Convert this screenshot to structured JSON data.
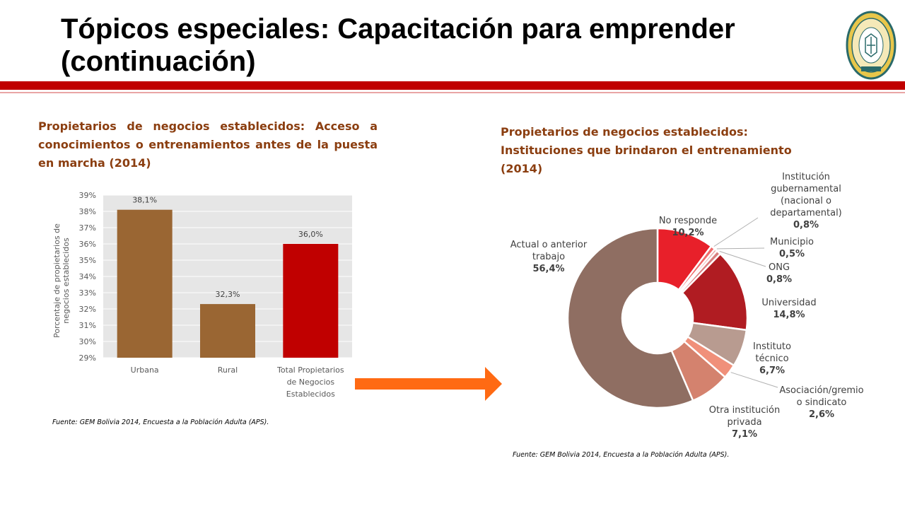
{
  "slide": {
    "title": "Tópicos especiales: Capacitación para emprender (continuación)"
  },
  "logo": {
    "icon": "university-seal-icon",
    "ring_text": "UNIVERSIDAD CATÓLICA BOLIVIANA SAN PABLO",
    "motto": "VERITAS IN CARITATE",
    "year": "MCMLXVI"
  },
  "colors": {
    "accent": "#c00000",
    "title_text": "#8b3e10"
  },
  "chart_data": [
    {
      "type": "bar",
      "title": "Propietarios de negocios establecidos: Acceso a conocimientos o entrenamientos antes de la puesta en marcha (2014)",
      "ylabel": "Porcentaje de propietarios de negocios establecidos",
      "ylim": [
        29,
        39
      ],
      "ytick_labels": [
        "29%",
        "30%",
        "31%",
        "32%",
        "33%",
        "34%",
        "35%",
        "36%",
        "37%",
        "38%",
        "39%"
      ],
      "grid": true,
      "categories": [
        "Urbana",
        "Rural",
        "Total Propietarios de Negocios Establecidos"
      ],
      "values": [
        38.1,
        32.3,
        36.0
      ],
      "data_labels": [
        "38,1%",
        "32,3%",
        "36,0%"
      ],
      "colors": [
        "#9a6633",
        "#9a6633",
        "#c00000"
      ],
      "source": "Fuente: GEM Bolivia 2014, Encuesta a la Población Adulta (APS)."
    },
    {
      "type": "pie",
      "title": "Propietarios de negocios establecidos: Instituciones que brindaron el entrenamiento (2014)",
      "slices": [
        {
          "label": "No responde",
          "value": 10.2,
          "value_label": "10,2%",
          "color": "#e8202a"
        },
        {
          "label": "Institución gubernamental (nacional o departamental)",
          "value": 0.8,
          "value_label": "0,8%",
          "color": "#f06a6a"
        },
        {
          "label": "Municipio",
          "value": 0.5,
          "value_label": "0,5%",
          "color": "#e8a0a0"
        },
        {
          "label": "ONG",
          "value": 0.8,
          "value_label": "0,8%",
          "color": "#d98080"
        },
        {
          "label": "Universidad",
          "value": 14.8,
          "value_label": "14,8%",
          "color": "#b01c22"
        },
        {
          "label": "Instituto técnico",
          "value": 6.7,
          "value_label": "6,7%",
          "color": "#b89b90"
        },
        {
          "label": "Asociación/gremio o sindicato",
          "value": 2.6,
          "value_label": "2,6%",
          "color": "#f0907a"
        },
        {
          "label": "Otra institución privada",
          "value": 7.1,
          "value_label": "7,1%",
          "color": "#d4826e"
        },
        {
          "label": "Actual o anterior trabajo",
          "value": 56.4,
          "value_label": "56,4%",
          "color": "#8f6e62"
        }
      ],
      "source": "Fuente: GEM Bolivia 2014, Encuesta a la Población Adulta (APS)."
    }
  ]
}
